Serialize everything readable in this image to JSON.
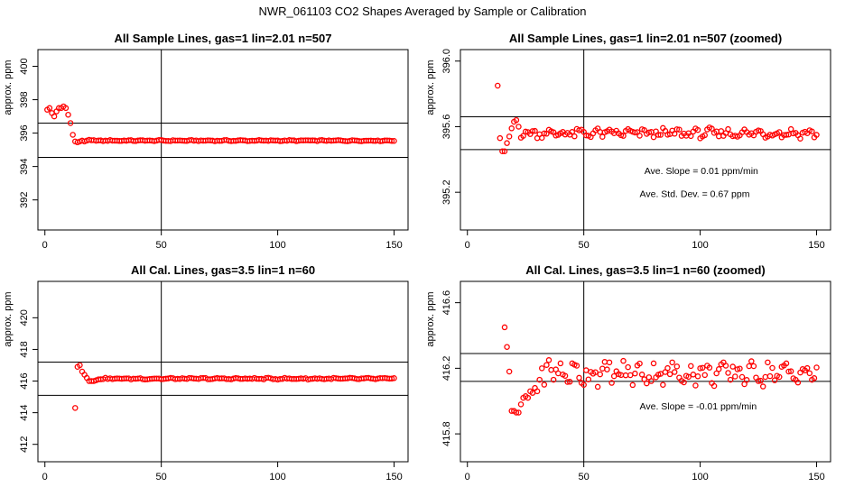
{
  "figure": {
    "title": "NWR_061103  CO2 Shapes Averaged by Sample or Calibration"
  },
  "chart_data": [
    {
      "id": "p1",
      "type": "scatter",
      "title": "All Sample Lines, gas=1 lin=2.01 n=507",
      "xlabel": "",
      "ylabel": "approx. ppm",
      "xlim": [
        -3,
        156
      ],
      "ylim": [
        390.2,
        401.0
      ],
      "xticks": [
        0,
        50,
        100,
        150
      ],
      "yticks": [
        392,
        394,
        396,
        398,
        400
      ],
      "ytick_labels": [
        "392",
        "394",
        "396",
        "398",
        "400"
      ],
      "vline": 50,
      "hlines": [
        394.55,
        396.6
      ],
      "marker_color": "#ff0000",
      "series": [
        {
          "segments": [
            {
              "x": [
                1,
                2,
                3,
                4,
                5,
                6,
                7,
                8,
                9,
                10,
                11,
                12,
                13,
                14,
                15,
                16,
                17,
                18,
                19
              ],
              "y": [
                397.4,
                397.5,
                397.2,
                397.0,
                397.3,
                397.5,
                397.5,
                397.6,
                397.5,
                397.1,
                396.6,
                395.9,
                395.5,
                395.45,
                395.5,
                395.55,
                395.5,
                395.55,
                395.6
              ]
            },
            {
              "x_start": 20,
              "x_end": 150,
              "mean": 395.55,
              "amp": 0.04
            }
          ]
        }
      ],
      "annotations": []
    },
    {
      "id": "p2",
      "type": "scatter",
      "title": "All Sample Lines, gas=1 lin=2.01 n=507 (zoomed)",
      "xlabel": "",
      "ylabel": "approx. ppm",
      "xlim": [
        -3,
        156
      ],
      "ylim": [
        394.97,
        396.07
      ],
      "xticks": [
        0,
        50,
        100,
        150
      ],
      "yticks": [
        395.2,
        395.6,
        396.0
      ],
      "ytick_labels": [
        "395.2",
        "395.6",
        "396.0"
      ],
      "vline": 50,
      "hlines": [
        395.46,
        395.66
      ],
      "marker_color": "#ff0000",
      "series": [
        {
          "segments": [
            {
              "x": [
                13,
                14,
                15,
                16,
                17,
                18,
                19,
                20,
                21,
                22
              ],
              "y": [
                395.85,
                395.53,
                395.45,
                395.45,
                395.5,
                395.54,
                395.59,
                395.63,
                395.64,
                395.6
              ]
            },
            {
              "x_start": 23,
              "x_end": 150,
              "mean": 395.56,
              "amp": 0.035
            }
          ]
        }
      ],
      "annotations": [
        {
          "text": "Ave. Slope =  0.01  ppm/min",
          "x": 76,
          "y": 395.31
        },
        {
          "text": "Ave. Std. Dev. =  0.67  ppm",
          "x": 74,
          "y": 395.17
        }
      ]
    },
    {
      "id": "p3",
      "type": "scatter",
      "title": "All Cal. Lines, gas=3.5 lin=1 n=60",
      "xlabel": "",
      "ylabel": "approx. ppm",
      "xlim": [
        -3,
        156
      ],
      "ylim": [
        410.9,
        422.3
      ],
      "xticks": [
        0,
        50,
        100,
        150
      ],
      "yticks": [
        412,
        414,
        416,
        418,
        420
      ],
      "ytick_labels": [
        "412",
        "414",
        "416",
        "418",
        "420"
      ],
      "vline": 50,
      "hlines": [
        415.1,
        417.2
      ],
      "marker_color": "#ff0000",
      "series": [
        {
          "segments": [
            {
              "x": [
                13,
                14,
                15,
                16,
                17,
                18,
                19,
                20,
                21,
                22
              ],
              "y": [
                414.3,
                416.9,
                417.0,
                416.6,
                416.4,
                416.2,
                416.0,
                416.0,
                416.0,
                416.05
              ]
            },
            {
              "x_start": 23,
              "x_end": 150,
              "mean": 416.15,
              "amp": 0.06
            }
          ]
        }
      ],
      "annotations": []
    },
    {
      "id": "p4",
      "type": "scatter",
      "title": "All Cal. Lines, gas=3.5 lin=1 n=60 (zoomed)",
      "xlabel": "",
      "ylabel": "approx. ppm",
      "xlim": [
        -3,
        156
      ],
      "ylim": [
        415.63,
        416.73
      ],
      "xticks": [
        0,
        50,
        100,
        150
      ],
      "yticks": [
        415.8,
        416.2,
        416.6
      ],
      "ytick_labels": [
        "415.8",
        "416.2",
        "416.6"
      ],
      "vline": 50,
      "hlines": [
        416.12,
        416.29
      ],
      "marker_color": "#ff0000",
      "series": [
        {
          "segments": [
            {
              "x": [
                16,
                17,
                18,
                19,
                20,
                21,
                22,
                23,
                24,
                25,
                26,
                27,
                28,
                29,
                30,
                31,
                32,
                33,
                34,
                35,
                36
              ],
              "y": [
                416.45,
                416.33,
                416.18,
                415.94,
                415.94,
                415.93,
                415.93,
                415.98,
                416.02,
                416.03,
                416.02,
                416.06,
                416.05,
                416.08,
                416.06,
                416.13,
                416.2,
                416.1,
                416.22,
                416.25,
                416.19
              ]
            },
            {
              "x_start": 37,
              "x_end": 150,
              "mean": 416.17,
              "amp": 0.09
            }
          ]
        }
      ],
      "annotations": [
        {
          "text": "Ave. Slope =  -0.01  ppm/min",
          "x": 74,
          "y": 415.95
        }
      ]
    }
  ]
}
